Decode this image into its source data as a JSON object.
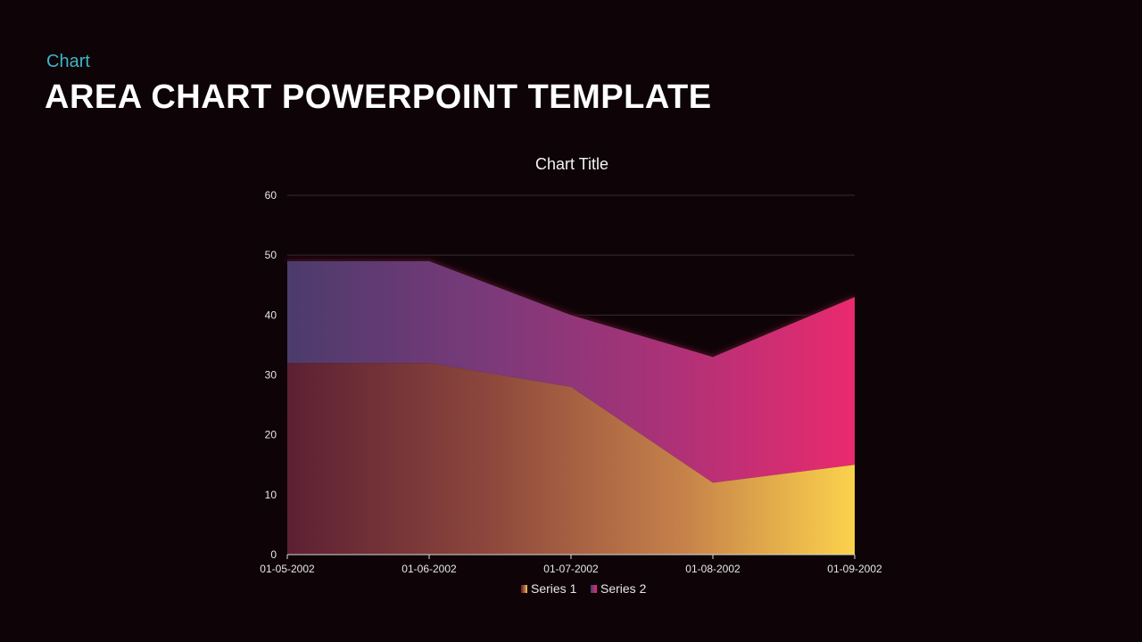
{
  "slide": {
    "eyebrow": "Chart",
    "title": "AREA CHART POWERPOINT TEMPLATE"
  },
  "colors": {
    "background": "#0e0407",
    "eyebrow": "#3fb4c8",
    "series1_gradient": [
      "#5e2233",
      "#8f4a3c",
      "#c8844a",
      "#fbd04c"
    ],
    "series2_gradient": [
      "#4a3a6a",
      "#7a3a78",
      "#b03478",
      "#e8286e"
    ]
  },
  "chart_data": {
    "type": "area",
    "stacked": true,
    "title": "Chart Title",
    "categories": [
      "01-05-2002",
      "01-06-2002",
      "01-07-2002",
      "01-08-2002",
      "01-09-2002"
    ],
    "series": [
      {
        "name": "Series 1",
        "values": [
          32,
          32,
          28,
          12,
          15
        ]
      },
      {
        "name": "Series 2",
        "values": [
          17,
          17,
          12,
          21,
          28
        ]
      }
    ],
    "ylim": [
      0,
      60
    ],
    "yticks": [
      0,
      10,
      20,
      30,
      40,
      50,
      60
    ],
    "grid": true,
    "legend": "bottom"
  }
}
